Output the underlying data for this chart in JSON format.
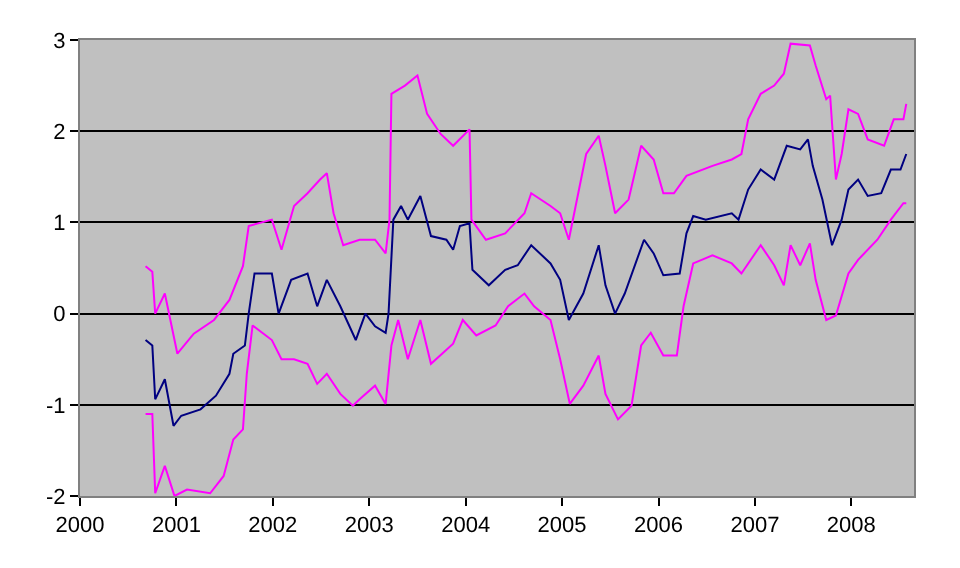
{
  "chart_data": {
    "type": "line",
    "xlim": [
      2000,
      2008.65
    ],
    "xticks": [
      2000,
      2001,
      2002,
      2003,
      2004,
      2005,
      2006,
      2007,
      2008
    ],
    "ylim": [
      -2,
      3
    ],
    "yticks": [
      -2,
      -1,
      0,
      1,
      2,
      3
    ],
    "grid": "y",
    "marker": "none",
    "line_style": "solid",
    "series": [
      {
        "color": "#ff00ff",
        "x": [
          2000.68,
          2000.75,
          2000.78,
          2000.88,
          2001.01,
          2001.18,
          2001.39,
          2001.55,
          2001.69,
          2001.75,
          2001.99,
          2002.09,
          2002.22,
          2002.36,
          2002.49,
          2002.56,
          2002.63,
          2002.73,
          2002.9,
          2003.06,
          2003.17,
          2003.21,
          2003.23,
          2003.37,
          2003.5,
          2003.6,
          2003.74,
          2003.87,
          2004.04,
          2004.06,
          2004.21,
          2004.41,
          2004.61,
          2004.68,
          2004.88,
          2004.98,
          2005.07,
          2005.25,
          2005.38,
          2005.45,
          2005.55,
          2005.69,
          2005.82,
          2005.95,
          2006.05,
          2006.16,
          2006.29,
          2006.56,
          2006.76,
          2006.86,
          2006.93,
          2007.06,
          2007.2,
          2007.3,
          2007.37,
          2007.57,
          2007.63,
          2007.74,
          2007.78,
          2007.84,
          2007.9,
          2007.97,
          2008.07,
          2008.17,
          2008.34,
          2008.44,
          2008.54,
          2008.57
        ],
        "values": [
          0.52,
          0.46,
          0,
          0.22,
          -0.44,
          -0.22,
          -0.07,
          0.15,
          0.52,
          0.96,
          1.03,
          0.7,
          1.18,
          1.32,
          1.47,
          1.54,
          1.1,
          0.75,
          0.81,
          0.81,
          0.66,
          1.03,
          2.41,
          2.5,
          2.61,
          2.19,
          1.97,
          1.84,
          2.02,
          1.03,
          0.81,
          0.88,
          1.1,
          1.32,
          1.18,
          1.1,
          0.81,
          1.75,
          1.95,
          1.62,
          1.1,
          1.25,
          1.84,
          1.69,
          1.32,
          1.32,
          1.51,
          1.62,
          1.69,
          1.75,
          2.13,
          2.41,
          2.5,
          2.63,
          2.96,
          2.94,
          2.72,
          2.35,
          2.39,
          1.47,
          1.75,
          2.24,
          2.19,
          1.91,
          1.84,
          2.13,
          2.13,
          2.3
        ]
      },
      {
        "color": "#ff00ff",
        "x": [
          2000.68,
          2000.75,
          2000.78,
          2000.88,
          2000.98,
          2001.11,
          2001.35,
          2001.49,
          2001.59,
          2001.69,
          2001.73,
          2001.79,
          2001.99,
          2002.09,
          2002.22,
          2002.36,
          2002.46,
          2002.56,
          2002.7,
          2002.83,
          2002.9,
          2003.06,
          2003.17,
          2003.23,
          2003.3,
          2003.4,
          2003.53,
          2003.64,
          2003.87,
          2003.97,
          2004.11,
          2004.31,
          2004.44,
          2004.61,
          2004.71,
          2004.88,
          2004.98,
          2005.08,
          2005.22,
          2005.38,
          2005.45,
          2005.58,
          2005.72,
          2005.82,
          2005.92,
          2006.05,
          2006.19,
          2006.26,
          2006.36,
          2006.56,
          2006.76,
          2006.86,
          2007.06,
          2007.2,
          2007.3,
          2007.37,
          2007.47,
          2007.57,
          2007.63,
          2007.74,
          2007.84,
          2007.97,
          2008.07,
          2008.27,
          2008.41,
          2008.54,
          2008.57
        ],
        "values": [
          -1.1,
          -1.1,
          -1.97,
          -1.67,
          -2.0,
          -1.93,
          -1.97,
          -1.78,
          -1.38,
          -1.27,
          -0.66,
          -0.13,
          -0.29,
          -0.5,
          -0.5,
          -0.55,
          -0.77,
          -0.66,
          -0.88,
          -1.01,
          -0.94,
          -0.79,
          -0.99,
          -0.35,
          -0.07,
          -0.5,
          -0.07,
          -0.55,
          -0.33,
          -0.07,
          -0.24,
          -0.13,
          0.08,
          0.22,
          0.08,
          -0.07,
          -0.5,
          -0.99,
          -0.79,
          -0.46,
          -0.88,
          -1.16,
          -1.01,
          -0.35,
          -0.21,
          -0.46,
          -0.46,
          0.08,
          0.55,
          0.64,
          0.55,
          0.44,
          0.75,
          0.53,
          0.31,
          0.75,
          0.53,
          0.77,
          0.37,
          -0.07,
          -0.02,
          0.44,
          0.59,
          0.81,
          1.03,
          1.21,
          1.21
        ]
      },
      {
        "color": "#000080",
        "x": [
          2000.68,
          2000.75,
          2000.78,
          2000.88,
          2000.97,
          2001.05,
          2001.25,
          2001.41,
          2001.55,
          2001.59,
          2001.71,
          2001.75,
          2001.81,
          2001.99,
          2002.06,
          2002.19,
          2002.36,
          2002.46,
          2002.56,
          2002.7,
          2002.86,
          2002.96,
          2003.06,
          2003.17,
          2003.2,
          2003.25,
          2003.33,
          2003.4,
          2003.53,
          2003.64,
          2003.8,
          2003.87,
          2003.94,
          2004.04,
          2004.07,
          2004.24,
          2004.41,
          2004.54,
          2004.68,
          2004.88,
          2004.98,
          2005.07,
          2005.22,
          2005.38,
          2005.45,
          2005.55,
          2005.65,
          2005.85,
          2005.95,
          2006.05,
          2006.22,
          2006.29,
          2006.36,
          2006.49,
          2006.76,
          2006.83,
          2006.93,
          2007.06,
          2007.2,
          2007.33,
          2007.47,
          2007.55,
          2007.6,
          2007.7,
          2007.8,
          2007.9,
          2007.97,
          2008.07,
          2008.17,
          2008.31,
          2008.41,
          2008.51,
          2008.57
        ],
        "values": [
          -0.29,
          -0.35,
          -0.94,
          -0.72,
          -1.23,
          -1.12,
          -1.05,
          -0.9,
          -0.66,
          -0.44,
          -0.35,
          0,
          0.44,
          0.44,
          0,
          0.37,
          0.44,
          0.08,
          0.37,
          0.08,
          -0.29,
          0,
          -0.14,
          -0.21,
          0,
          1.03,
          1.18,
          1.03,
          1.29,
          0.85,
          0.81,
          0.7,
          0.96,
          0.99,
          0.48,
          0.31,
          0.48,
          0.53,
          0.75,
          0.55,
          0.37,
          -0.07,
          0.22,
          0.75,
          0.31,
          0,
          0.22,
          0.81,
          0.66,
          0.42,
          0.44,
          0.88,
          1.07,
          1.03,
          1.1,
          1.03,
          1.36,
          1.58,
          1.47,
          1.84,
          1.8,
          1.91,
          1.62,
          1.25,
          0.75,
          1.03,
          1.36,
          1.47,
          1.29,
          1.32,
          1.58,
          1.58,
          1.75
        ]
      }
    ]
  }
}
